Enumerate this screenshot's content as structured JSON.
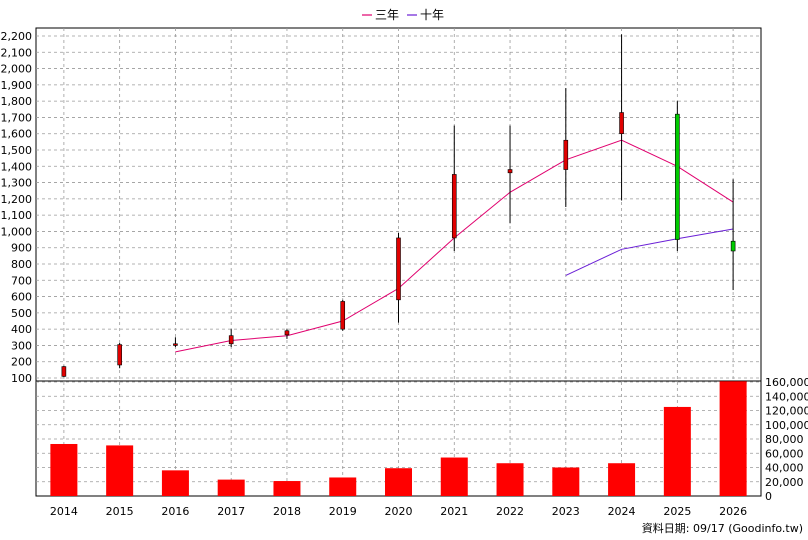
{
  "legend": {
    "items": [
      {
        "label": "三年",
        "color": "#e0006e"
      },
      {
        "label": "十年",
        "color": "#6a1fd6"
      }
    ]
  },
  "footer": {
    "source": "資料日期: 09/17 (Goodinfo.tw)"
  },
  "chart_data": [
    {
      "type": "candlestick",
      "years": [
        "2014",
        "2015",
        "2016",
        "2017",
        "2018",
        "2019",
        "2020",
        "2021",
        "2022",
        "2023",
        "2024",
        "2025",
        "2026"
      ],
      "ylim": [
        100,
        2250
      ],
      "yticks": [
        100,
        200,
        300,
        400,
        500,
        600,
        700,
        800,
        900,
        1000,
        1100,
        1200,
        1300,
        1400,
        1500,
        1600,
        1700,
        1800,
        1900,
        2000,
        2100,
        2200
      ],
      "grid": true,
      "candles": [
        {
          "year": "2014",
          "open": 110,
          "high": 175,
          "low": 105,
          "close": 170,
          "color": "#e00000"
        },
        {
          "year": "2015",
          "open": 180,
          "high": 315,
          "low": 160,
          "close": 305,
          "color": "#e00000"
        },
        {
          "year": "2016",
          "open": 300,
          "high": 350,
          "low": 290,
          "close": 310,
          "color": "#e00000"
        },
        {
          "year": "2017",
          "open": 310,
          "high": 400,
          "low": 290,
          "close": 360,
          "color": "#e00000"
        },
        {
          "year": "2018",
          "open": 365,
          "high": 400,
          "low": 340,
          "close": 390,
          "color": "#e00000"
        },
        {
          "year": "2019",
          "open": 400,
          "high": 580,
          "low": 390,
          "close": 570,
          "color": "#e00000"
        },
        {
          "year": "2020",
          "open": 580,
          "high": 990,
          "low": 440,
          "close": 960,
          "color": "#e00000"
        },
        {
          "year": "2021",
          "open": 960,
          "high": 1650,
          "low": 880,
          "close": 1350,
          "color": "#e00000"
        },
        {
          "year": "2022",
          "open": 1360,
          "high": 1650,
          "low": 1050,
          "close": 1380,
          "color": "#e00000"
        },
        {
          "year": "2023",
          "open": 1380,
          "high": 1880,
          "low": 1150,
          "close": 1560,
          "color": "#e00000"
        },
        {
          "year": "2024",
          "open": 1600,
          "high": 2210,
          "low": 1190,
          "close": 1730,
          "color": "#e00000"
        },
        {
          "year": "2025",
          "open": 1720,
          "high": 1800,
          "low": 880,
          "close": 950,
          "color": "#00cc00"
        },
        {
          "year": "2026",
          "open": 940,
          "high": 1320,
          "low": 640,
          "close": 880,
          "color": "#00cc00"
        }
      ],
      "series": [
        {
          "name": "三年",
          "color": "#e0006e",
          "points": [
            [
              "2016",
              260
            ],
            [
              "2017",
              330
            ],
            [
              "2018",
              360
            ],
            [
              "2019",
              450
            ],
            [
              "2020",
              650
            ],
            [
              "2021",
              960
            ],
            [
              "2022",
              1240
            ],
            [
              "2023",
              1440
            ],
            [
              "2024",
              1560
            ],
            [
              "2025",
              1400
            ],
            [
              "2026",
              1180
            ]
          ]
        },
        {
          "name": "十年",
          "color": "#6a1fd6",
          "points": [
            [
              "2023",
              730
            ],
            [
              "2024",
              890
            ],
            [
              "2025",
              955
            ],
            [
              "2026",
              1015
            ]
          ]
        }
      ]
    },
    {
      "type": "bar",
      "categories": [
        "2014",
        "2015",
        "2016",
        "2017",
        "2018",
        "2019",
        "2020",
        "2021",
        "2022",
        "2023",
        "2024",
        "2025",
        "2026"
      ],
      "values": [
        73000,
        71000,
        36000,
        23000,
        21000,
        26000,
        39000,
        54000,
        46000,
        40000,
        46000,
        125000,
        161000
      ],
      "ylim": [
        0,
        170000
      ],
      "yticks": [
        "0",
        "20,000",
        "40,000",
        "60,000",
        "80,000",
        "100,000",
        "120,000",
        "140,000",
        "160,000"
      ],
      "color": "#ff0000",
      "grid": true
    }
  ]
}
